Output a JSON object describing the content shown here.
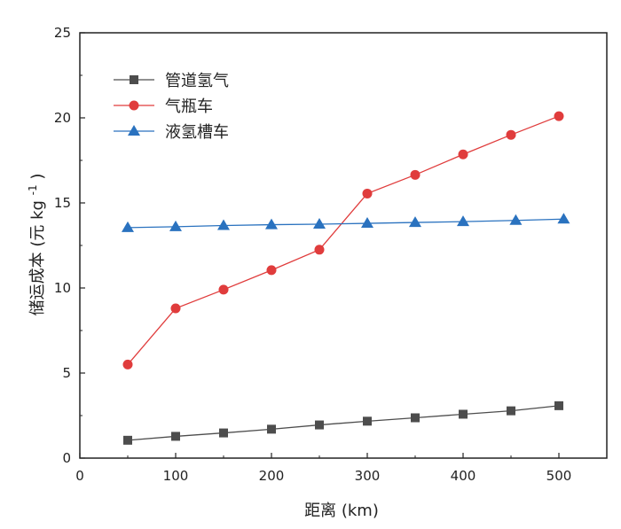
{
  "chart_data": {
    "type": "line",
    "xlabel": "距离 (km)",
    "ylabel_main": "储运成本 (元 kg",
    "ylabel_sup": "-1",
    "ylabel_close": ")",
    "xlim": [
      0,
      550
    ],
    "ylim": [
      0,
      25
    ],
    "xticks": [
      0,
      100,
      200,
      300,
      400,
      500
    ],
    "yticks": [
      0,
      5,
      10,
      15,
      20,
      25
    ],
    "legend_position": "top-left",
    "grid": false,
    "series": [
      {
        "name": "管道氢气",
        "marker": "square",
        "color": "#4d4d4d",
        "x": [
          50,
          100,
          150,
          200,
          250,
          300,
          350,
          400,
          450,
          500
        ],
        "values": [
          1.05,
          1.28,
          1.48,
          1.7,
          1.95,
          2.17,
          2.37,
          2.58,
          2.78,
          3.08
        ]
      },
      {
        "name": "气瓶车",
        "marker": "circle",
        "color": "#e03c3c",
        "x": [
          50,
          100,
          150,
          200,
          250,
          300,
          350,
          400,
          450,
          500
        ],
        "values": [
          5.5,
          8.8,
          9.9,
          11.05,
          12.25,
          15.55,
          16.65,
          17.85,
          19.0,
          20.1
        ]
      },
      {
        "name": "液氢槽车",
        "marker": "triangle",
        "color": "#2a72bf",
        "x": [
          50,
          100,
          150,
          200,
          250,
          300,
          350,
          400,
          455,
          505
        ],
        "values": [
          13.55,
          13.6,
          13.67,
          13.72,
          13.75,
          13.8,
          13.85,
          13.9,
          13.97,
          14.05
        ]
      }
    ]
  }
}
